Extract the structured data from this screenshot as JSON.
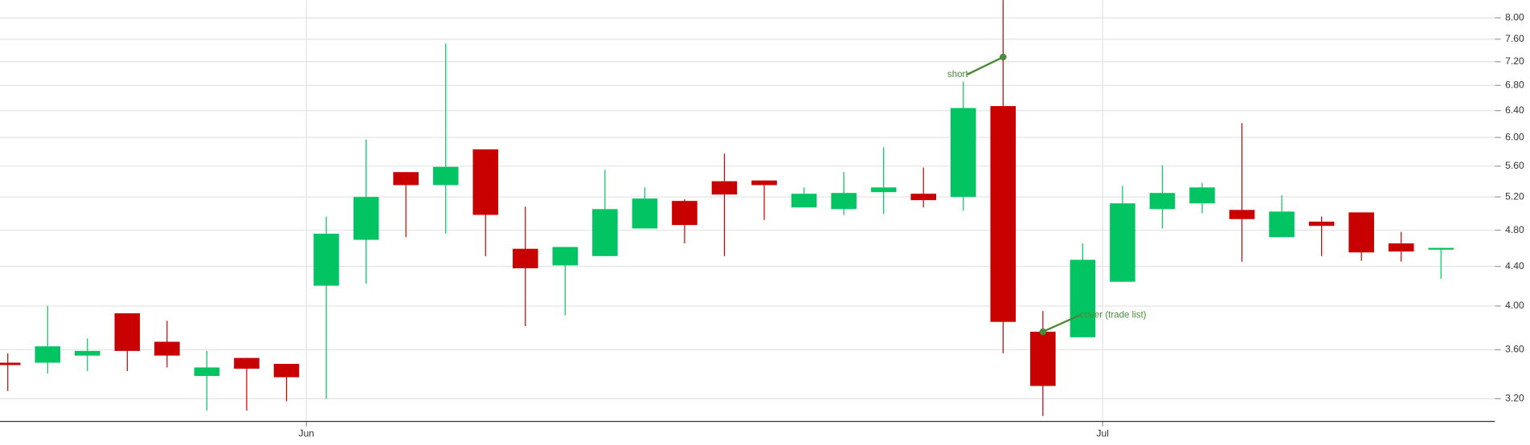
{
  "chart_data": {
    "type": "candlestick",
    "categories": [
      null,
      null,
      null,
      null,
      null,
      null,
      null,
      null,
      "Jun",
      null,
      null,
      null,
      null,
      null,
      null,
      null,
      null,
      null,
      null,
      null,
      null,
      null,
      null,
      null,
      null,
      null,
      null,
      null,
      "Jul",
      null,
      null,
      null,
      null,
      null,
      null,
      null,
      null
    ],
    "open": [
      3.49,
      3.49,
      3.55,
      3.93,
      3.67,
      3.38,
      3.53,
      3.48,
      4.2,
      4.69,
      5.52,
      5.35,
      5.83,
      4.59,
      4.41,
      4.51,
      4.82,
      5.15,
      5.4,
      5.41,
      5.07,
      5.05,
      5.26,
      5.24,
      5.2,
      6.47,
      3.76,
      3.71,
      4.24,
      5.05,
      5.12,
      5.04,
      4.72,
      4.9,
      5.01,
      4.65,
      4.58
    ],
    "high": [
      3.57,
      4.0,
      3.7,
      3.93,
      3.86,
      3.59,
      3.53,
      3.48,
      4.96,
      5.97,
      5.52,
      7.52,
      5.83,
      5.08,
      4.61,
      5.55,
      5.32,
      5.17,
      5.77,
      5.41,
      5.32,
      5.52,
      5.86,
      5.58,
      6.86,
      8.35,
      3.95,
      4.65,
      5.34,
      5.61,
      5.38,
      6.21,
      5.22,
      4.96,
      5.01,
      4.78,
      4.6
    ],
    "low": [
      3.26,
      3.4,
      3.42,
      3.42,
      3.45,
      3.11,
      3.11,
      3.18,
      3.2,
      4.22,
      4.72,
      4.76,
      4.51,
      3.81,
      3.91,
      4.51,
      4.82,
      4.65,
      4.51,
      4.92,
      5.07,
      4.98,
      4.99,
      5.07,
      5.03,
      3.57,
      3.07,
      3.71,
      4.24,
      4.82,
      5.0,
      4.45,
      4.72,
      4.51,
      4.46,
      4.45,
      4.27
    ],
    "close": [
      3.47,
      3.63,
      3.59,
      3.59,
      3.55,
      3.45,
      3.44,
      3.37,
      4.76,
      5.2,
      5.35,
      5.59,
      4.98,
      4.38,
      4.61,
      5.05,
      5.18,
      4.86,
      5.23,
      5.35,
      5.24,
      5.25,
      5.32,
      5.16,
      6.44,
      3.85,
      3.3,
      4.47,
      5.12,
      5.25,
      5.32,
      4.93,
      5.02,
      4.85,
      4.55,
      4.56,
      4.6
    ],
    "up_color": "#03c463",
    "down_color": "#c80000",
    "ylim": [
      3.03,
      8.35
    ],
    "log_scale": true,
    "grid": true,
    "yticks": [
      {
        "value": 3.2,
        "label": "3.20"
      },
      {
        "value": 3.6,
        "label": "3.60"
      },
      {
        "value": 4.0,
        "label": "4.00"
      },
      {
        "value": 4.4,
        "label": "4.40"
      },
      {
        "value": 4.8,
        "label": "4.80"
      },
      {
        "value": 5.2,
        "label": "5.20"
      },
      {
        "value": 5.6,
        "label": "5.60"
      },
      {
        "value": 6.0,
        "label": "6.00"
      },
      {
        "value": 6.4,
        "label": "6.40"
      },
      {
        "value": 6.8,
        "label": "6.80"
      },
      {
        "value": 7.2,
        "label": "7.20"
      },
      {
        "value": 7.6,
        "label": "7.60"
      },
      {
        "value": 8.0,
        "label": "8.00"
      }
    ],
    "annotations": [
      {
        "label": "short",
        "index": 25,
        "value": 7.28,
        "color": "#4a8a3a"
      },
      {
        "label": "cover (trade list)",
        "index": 26,
        "value": 3.76,
        "color": "#4a8a3a"
      }
    ]
  }
}
